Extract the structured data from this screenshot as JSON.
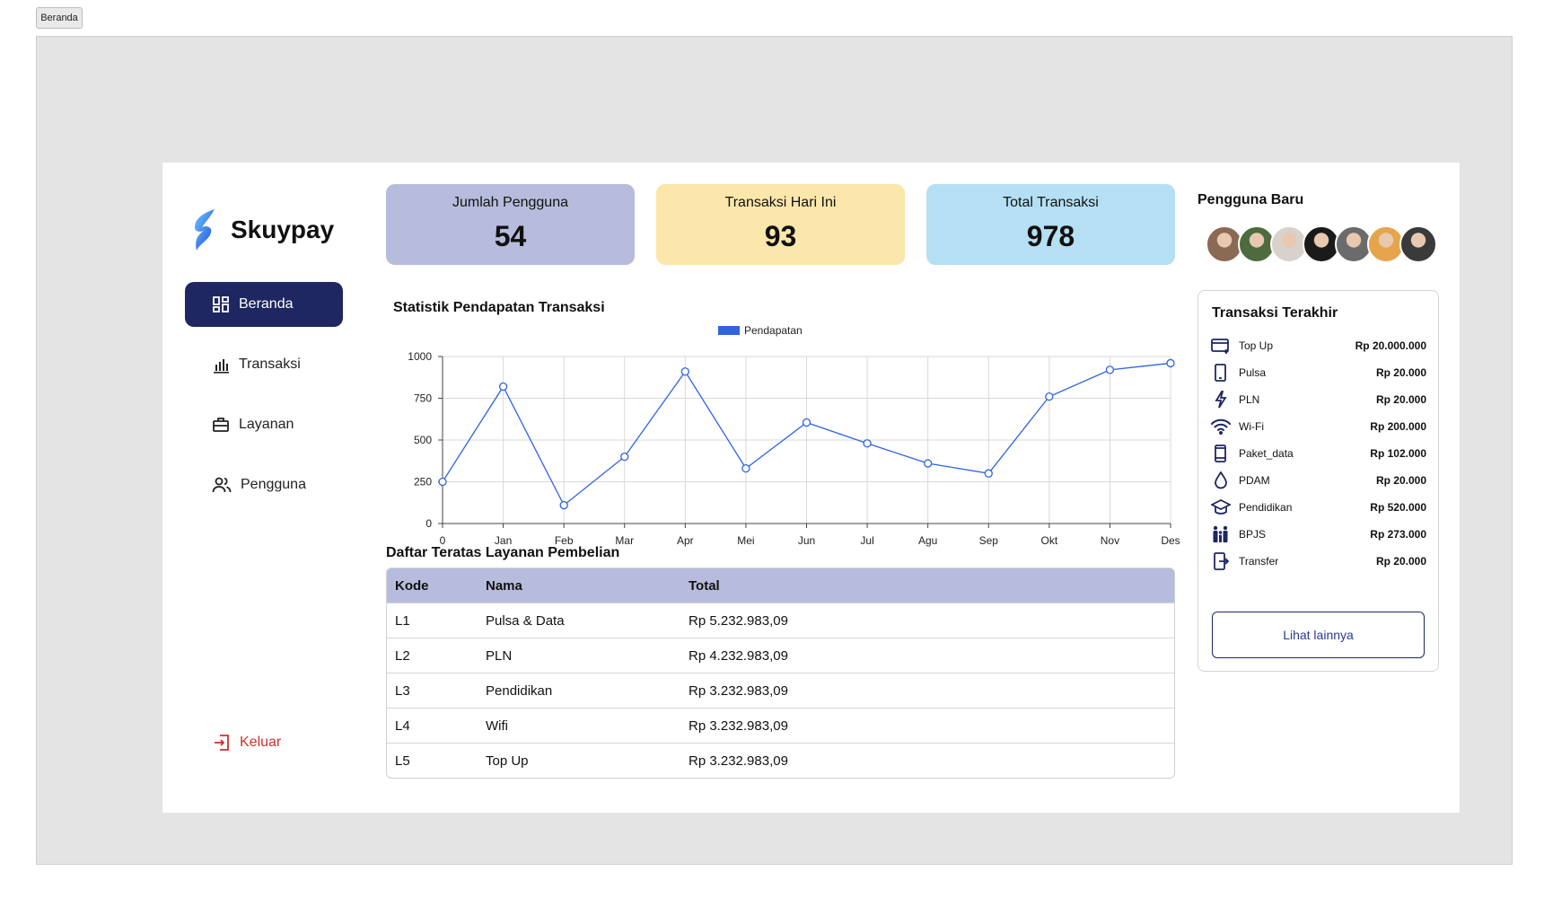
{
  "window": {
    "tab_label": "Beranda"
  },
  "brand": {
    "name": "Skuypay",
    "accent": "#1e2761"
  },
  "sidebar": {
    "items": [
      {
        "label": "Beranda",
        "icon": "dashboard-icon",
        "active": true
      },
      {
        "label": "Transaksi",
        "icon": "bar-chart-icon",
        "active": false
      },
      {
        "label": "Layanan",
        "icon": "briefcase-icon",
        "active": false
      },
      {
        "label": "Pengguna",
        "icon": "users-icon",
        "active": false
      }
    ],
    "logout": {
      "label": "Keluar",
      "icon": "logout-icon",
      "color": "#d32f2f"
    }
  },
  "stats": [
    {
      "label": "Jumlah Pengguna",
      "value": "54",
      "color": "#b7bcdc"
    },
    {
      "label": "Transaksi Hari Ini",
      "value": "93",
      "color": "#fbe7ab"
    },
    {
      "label": "Total Transaksi",
      "value": "978",
      "color": "#b5e0f3"
    }
  ],
  "chart_data": {
    "type": "line",
    "title": "Statistik Pendapatan Transaksi",
    "x": [
      "0",
      "Jan",
      "Feb",
      "Mar",
      "Apr",
      "Mei",
      "Jun",
      "Jul",
      "Agu",
      "Sep",
      "Okt",
      "Nov",
      "Des"
    ],
    "series": [
      {
        "name": "Pendapatan",
        "color": "#2f63e0",
        "values": [
          250,
          820,
          110,
          400,
          910,
          330,
          605,
          480,
          360,
          300,
          760,
          920,
          960
        ]
      }
    ],
    "yticks": [
      0,
      250,
      500,
      750,
      1000
    ],
    "ylim": [
      0,
      1000
    ],
    "grid": true,
    "legend_position": "top-center"
  },
  "table": {
    "title": "Daftar Teratas Layanan Pembelian",
    "headers": [
      "Kode",
      "Nama",
      "Total"
    ],
    "rows": [
      [
        "L1",
        "Pulsa & Data",
        "Rp 5.232.983,09"
      ],
      [
        "L2",
        "PLN",
        "Rp 4.232.983,09"
      ],
      [
        "L3",
        "Pendidikan",
        "Rp 3.232.983,09"
      ],
      [
        "L4",
        "Wifi",
        "Rp 3.232.983,09"
      ],
      [
        "L5",
        "Top Up",
        "Rp 3.232.983,09"
      ]
    ],
    "header_color": "#b7bcdc"
  },
  "new_users": {
    "title": "Pengguna Baru",
    "avatar_colors": [
      "#8a6a55",
      "#4d6b3c",
      "#d9d2cc",
      "#1a1a1a",
      "#6b6b6b",
      "#e7a54b",
      "#3a3a3a"
    ]
  },
  "recent": {
    "title": "Transaksi Terakhir",
    "items": [
      {
        "icon": "card-plus-icon",
        "name": "Top Up",
        "amount": "Rp 20.000.000"
      },
      {
        "icon": "phone-icon",
        "name": "Pulsa",
        "amount": "Rp 20.000"
      },
      {
        "icon": "lightning-icon",
        "name": "PLN",
        "amount": "Rp 20.000"
      },
      {
        "icon": "wifi-icon",
        "name": "Wi-Fi",
        "amount": "Rp 200.000"
      },
      {
        "icon": "phone-icon",
        "name": "Paket_data",
        "amount": "Rp 102.000"
      },
      {
        "icon": "water-drop-icon",
        "name": "PDAM",
        "amount": "Rp 20.000"
      },
      {
        "icon": "graduation-cap-icon",
        "name": "Pendidikan",
        "amount": "Rp 520.000"
      },
      {
        "icon": "family-icon",
        "name": "BPJS",
        "amount": "Rp 273.000"
      },
      {
        "icon": "transfer-phone-icon",
        "name": "Transfer",
        "amount": "Rp 20.000"
      }
    ],
    "more_label": "Lihat lainnya"
  }
}
